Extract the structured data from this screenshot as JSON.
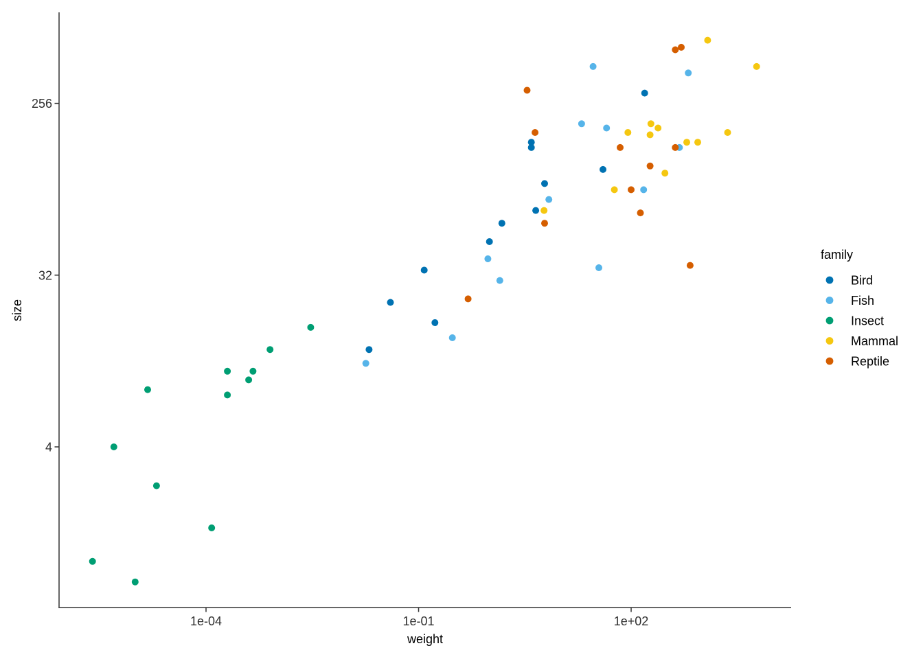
{
  "chart_data": {
    "type": "scatter",
    "title": "",
    "xlabel": "weight",
    "ylabel": "size",
    "x_scale": "log10",
    "y_scale": "log2",
    "grid": false,
    "x_ticks": [
      {
        "value": 0.0001,
        "label": "1e-04"
      },
      {
        "value": 0.1,
        "label": "1e-01"
      },
      {
        "value": 100,
        "label": "1e+02"
      }
    ],
    "y_ticks": [
      {
        "value": 4,
        "label": "4"
      },
      {
        "value": 32,
        "label": "32"
      },
      {
        "value": 256,
        "label": "256"
      }
    ],
    "x_range_log10": [
      -6.07,
      4.26
    ],
    "y_range": [
      0.55,
      800
    ],
    "legend": {
      "title": "family",
      "position": "right"
    },
    "series": [
      {
        "name": "Bird",
        "color": "#0072B2",
        "points": [
          [
            0.12,
            34
          ],
          [
            0.04,
            23
          ],
          [
            0.17,
            18
          ],
          [
            0.02,
            13
          ],
          [
            1.0,
            48
          ],
          [
            1.5,
            60
          ],
          [
            4.5,
            70
          ],
          [
            6.0,
            97
          ],
          [
            3.9,
            160
          ],
          [
            3.9,
            150
          ],
          [
            40,
            115
          ],
          [
            155,
            290
          ]
        ]
      },
      {
        "name": "Fish",
        "color": "#56B4E9",
        "points": [
          [
            0.018,
            11
          ],
          [
            0.3,
            15
          ],
          [
            1.4,
            30
          ],
          [
            0.95,
            39
          ],
          [
            6.9,
            80
          ],
          [
            150,
            90
          ],
          [
            35,
            35
          ],
          [
            29,
            400
          ],
          [
            640,
            370
          ],
          [
            20,
            200
          ],
          [
            45,
            190
          ],
          [
            480,
            150
          ]
        ]
      },
      {
        "name": "Insect",
        "color": "#009E73",
        "points": [
          [
            2.5e-06,
            1.0
          ],
          [
            1e-05,
            0.78
          ],
          [
            5e-06,
            4.0
          ],
          [
            2e-05,
            2.5
          ],
          [
            0.00012,
            1.5
          ],
          [
            1.5e-05,
            8.0
          ],
          [
            0.0002,
            10
          ],
          [
            0.00046,
            10
          ],
          [
            0.0004,
            9.0
          ],
          [
            0.0002,
            7.5
          ],
          [
            0.0008,
            13
          ],
          [
            0.003,
            17
          ]
        ]
      },
      {
        "name": "Mammal",
        "color": "#F5C710",
        "points": [
          [
            5.9,
            70
          ],
          [
            58,
            90
          ],
          [
            300,
            110
          ],
          [
            185,
            175
          ],
          [
            90,
            180
          ],
          [
            190,
            200
          ],
          [
            240,
            190
          ],
          [
            610,
            160
          ],
          [
            870,
            160
          ],
          [
            1200,
            550
          ],
          [
            5900,
            400
          ],
          [
            2300,
            180
          ]
        ]
      },
      {
        "name": "Reptile",
        "color": "#D55E00",
        "points": [
          [
            0.5,
            24
          ],
          [
            3.4,
            300
          ],
          [
            4.4,
            180
          ],
          [
            70,
            150
          ],
          [
            135,
            68
          ],
          [
            100,
            90
          ],
          [
            185,
            120
          ],
          [
            6.0,
            60
          ],
          [
            420,
            490
          ],
          [
            510,
            505
          ],
          [
            420,
            150
          ],
          [
            680,
            36
          ]
        ]
      }
    ]
  }
}
